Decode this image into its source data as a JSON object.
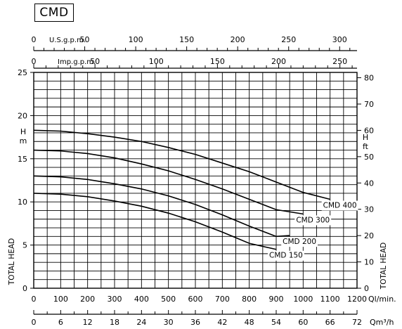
{
  "title": "CMD",
  "chart_data": {
    "type": "line",
    "title": "CMD",
    "x": {
      "values": [
        0,
        100,
        200,
        300,
        400,
        500,
        600,
        700,
        800,
        900,
        1000,
        1100,
        1200
      ],
      "label": "Ql/min."
    },
    "x_qm3h": {
      "values": [
        0,
        6,
        12,
        18,
        24,
        30,
        36,
        42,
        48,
        54,
        60,
        66,
        72
      ],
      "label": "Qm³/h"
    },
    "x_usgpm": {
      "values": [
        0,
        50,
        100,
        150,
        200,
        250,
        300
      ],
      "label": "U.S.g.p.m."
    },
    "x_impgpm": {
      "values": [
        0,
        50,
        100,
        150,
        200,
        250
      ],
      "label": "Imp.g.p.m."
    },
    "y_left": {
      "values": [
        0,
        5,
        10,
        15,
        20,
        25
      ],
      "unit": "H m",
      "label": "TOTAL HEAD",
      "range": [
        0,
        25
      ]
    },
    "y_right": {
      "values": [
        0,
        10,
        20,
        30,
        40,
        50,
        60,
        70,
        80
      ],
      "unit": "H ft",
      "label": "TOTAL HEAD"
    },
    "xlim": [
      0,
      1200
    ],
    "grid": true,
    "series": [
      {
        "name": "CMD 400",
        "x": [
          0,
          100,
          200,
          300,
          400,
          500,
          600,
          700,
          800,
          900,
          1000,
          1100
        ],
        "y": [
          18.3,
          18.2,
          17.9,
          17.5,
          17.0,
          16.3,
          15.5,
          14.5,
          13.5,
          12.3,
          11.1,
          10.3
        ]
      },
      {
        "name": "CMD 300",
        "x": [
          0,
          100,
          200,
          300,
          400,
          500,
          600,
          700,
          800,
          900,
          1000
        ],
        "y": [
          16.0,
          15.9,
          15.6,
          15.1,
          14.4,
          13.6,
          12.6,
          11.5,
          10.3,
          9.1,
          8.6
        ]
      },
      {
        "name": "CMD 200",
        "x": [
          0,
          100,
          200,
          300,
          400,
          500,
          600,
          700,
          800,
          900,
          950
        ],
        "y": [
          13.0,
          12.9,
          12.6,
          12.1,
          11.5,
          10.7,
          9.7,
          8.5,
          7.2,
          6.0,
          6.1
        ]
      },
      {
        "name": "CMD 150",
        "x": [
          0,
          100,
          200,
          300,
          400,
          500,
          600,
          700,
          800,
          900
        ],
        "y": [
          11.0,
          10.9,
          10.6,
          10.1,
          9.5,
          8.7,
          7.7,
          6.5,
          5.2,
          4.5
        ]
      }
    ]
  }
}
